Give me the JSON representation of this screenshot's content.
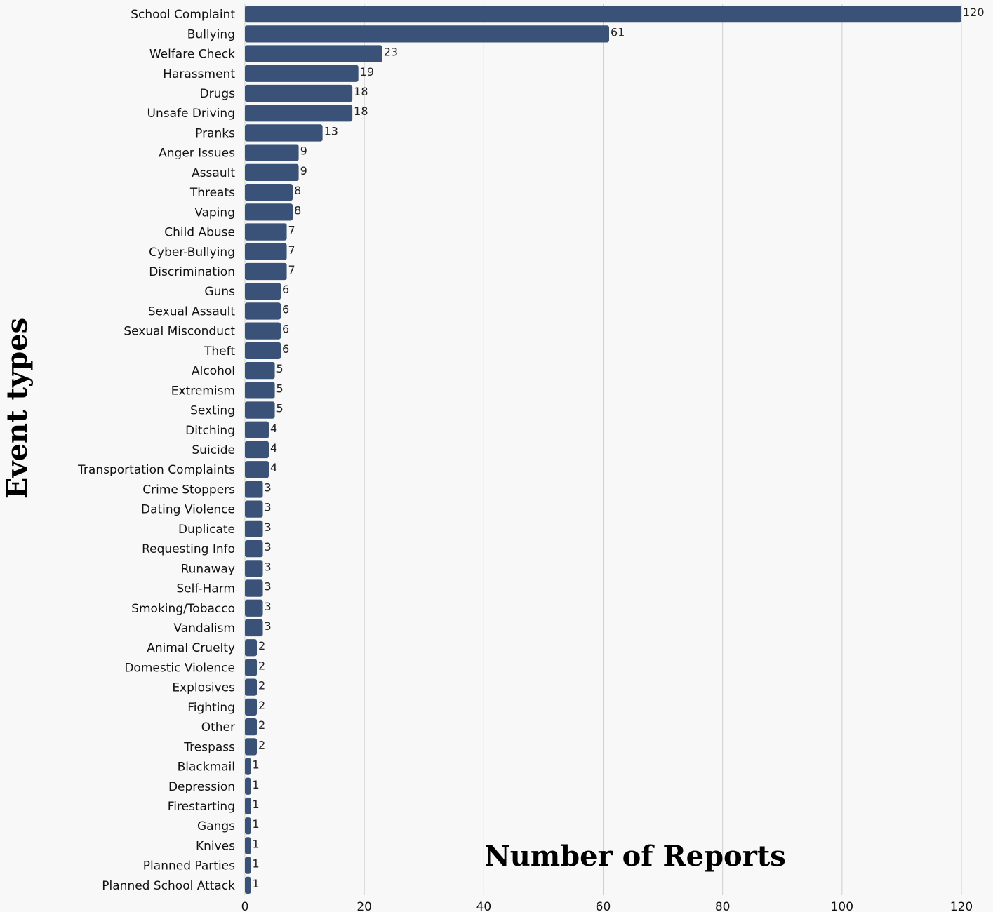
{
  "chart_data": {
    "type": "bar",
    "orientation": "horizontal",
    "xlabel": "Number of Reports",
    "ylabel": "Event types",
    "xlim": [
      0,
      120
    ],
    "xticks": [
      0,
      20,
      40,
      60,
      80,
      100,
      120
    ],
    "grid": "vertical",
    "bar_color": "#3a5278",
    "background": "#f8f8f8",
    "categories": [
      "School Complaint",
      "Bullying",
      "Welfare Check",
      "Harassment",
      "Drugs",
      "Unsafe Driving",
      "Pranks",
      "Anger Issues",
      "Assault",
      "Threats",
      "Vaping",
      "Child Abuse",
      "Cyber-Bullying",
      "Discrimination",
      "Guns",
      "Sexual Assault",
      "Sexual Misconduct",
      "Theft",
      "Alcohol",
      "Extremism",
      "Sexting",
      "Ditching",
      "Suicide",
      "Transportation Complaints",
      "Crime Stoppers",
      "Dating Violence",
      "Duplicate",
      "Requesting Info",
      "Runaway",
      "Self-Harm",
      "Smoking/Tobacco",
      "Vandalism",
      "Animal Cruelty",
      "Domestic Violence",
      "Explosives",
      "Fighting",
      "Other",
      "Trespass",
      "Blackmail",
      "Depression",
      "Firestarting",
      "Gangs",
      "Knives",
      "Planned Parties",
      "Planned School Attack"
    ],
    "values": [
      120,
      61,
      23,
      19,
      18,
      18,
      13,
      9,
      9,
      8,
      8,
      7,
      7,
      7,
      6,
      6,
      6,
      6,
      5,
      5,
      5,
      4,
      4,
      4,
      3,
      3,
      3,
      3,
      3,
      3,
      3,
      3,
      2,
      2,
      2,
      2,
      2,
      2,
      1,
      1,
      1,
      1,
      1,
      1,
      1
    ]
  }
}
